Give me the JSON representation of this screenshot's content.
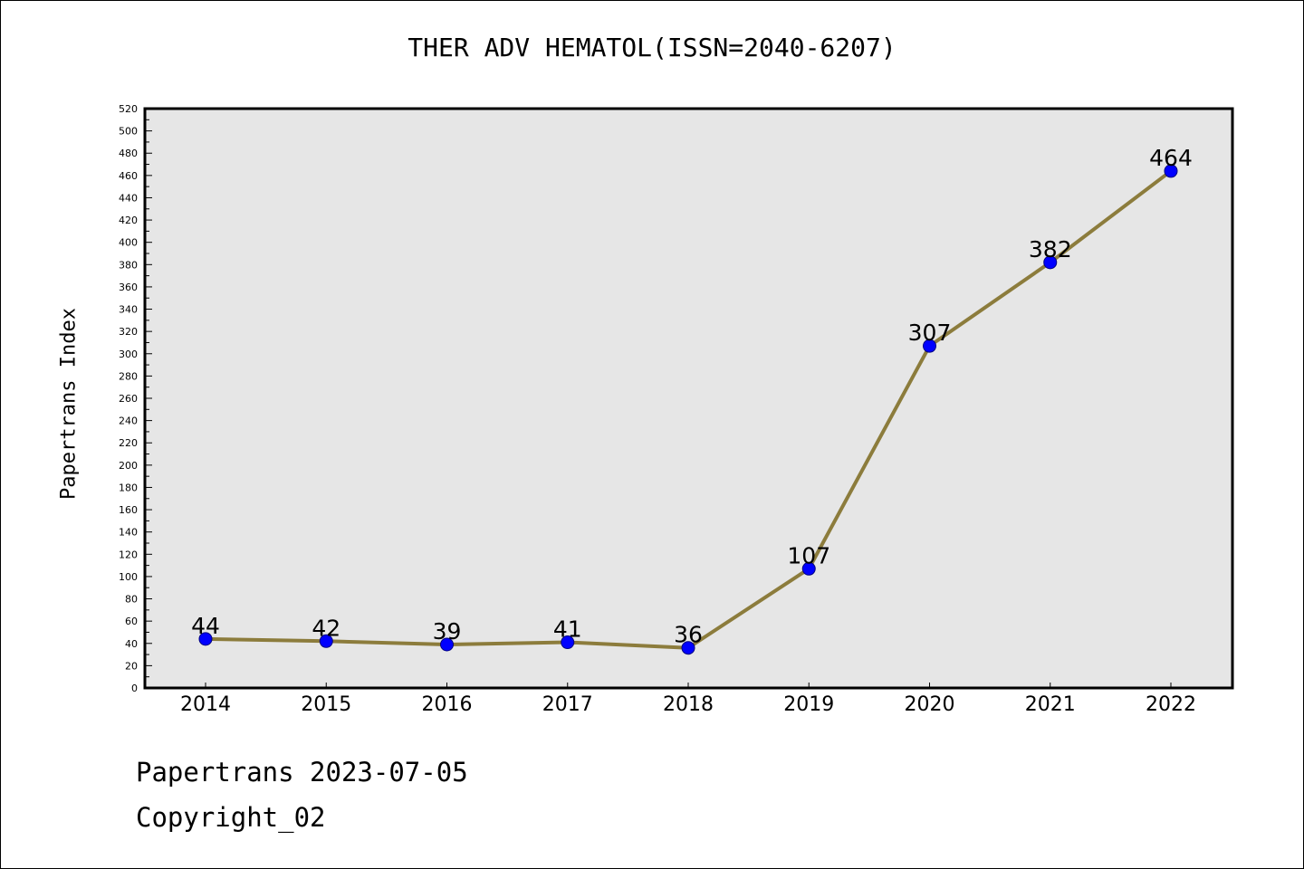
{
  "chart_data": {
    "type": "line",
    "title": "THER ADV HEMATOL(ISSN=2040-6207)",
    "ylabel": "Papertrans Index",
    "xlabel": "",
    "categories": [
      "2014",
      "2015",
      "2016",
      "2017",
      "2018",
      "2019",
      "2020",
      "2021",
      "2022"
    ],
    "series": [
      {
        "values": [
          44,
          42,
          39,
          41,
          36,
          107,
          307,
          382,
          464
        ]
      }
    ],
    "ylim": [
      0,
      520
    ],
    "ytick_step": 20,
    "ytick_minor_step": 10,
    "grid": false,
    "data_labels": true,
    "colors": {
      "line": "#8c7c3c",
      "marker_fill": "#0000ff",
      "marker_edge": "#000080",
      "plot_background": "#e6e6e6",
      "axes_border": "#000000"
    }
  },
  "footer": {
    "line1": "Papertrans 2023-07-05",
    "line2": "Copyright_02"
  }
}
